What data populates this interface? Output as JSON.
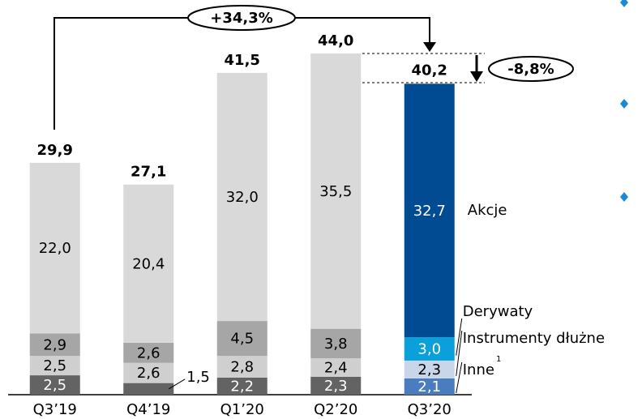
{
  "chart_data": {
    "type": "stacked_bar",
    "categories": [
      "Q3’19",
      "Q4’19",
      "Q1’20",
      "Q2’20",
      "Q3’20"
    ],
    "series": [
      {
        "name": "Inne",
        "superscript": "1",
        "values": [
          2.5,
          1.5,
          2.2,
          2.3,
          2.1
        ],
        "value_labels": [
          "2,5",
          "1,5",
          "2,2",
          "2,3",
          "2,1"
        ],
        "colors": [
          "#636363",
          "#636363",
          "#636363",
          "#636363",
          "#4a7cc0"
        ]
      },
      {
        "name": "Instrumenty dłużne",
        "values": [
          2.5,
          2.6,
          2.8,
          2.4,
          2.3
        ],
        "value_labels": [
          "2,5",
          "2,6",
          "2,8",
          "2,4",
          "2,3"
        ],
        "colors": [
          "#cfcfcf",
          "#cfcfcf",
          "#cfcfcf",
          "#cfcfcf",
          "#c9d6ea"
        ]
      },
      {
        "name": "Derywaty",
        "values": [
          2.9,
          2.6,
          4.5,
          3.8,
          3.0
        ],
        "value_labels": [
          "2,9",
          "2,6",
          "4,5",
          "3,8",
          "3,0"
        ],
        "colors": [
          "#a6a6a6",
          "#a6a6a6",
          "#a6a6a6",
          "#a6a6a6",
          "#0aa0dc"
        ]
      },
      {
        "name": "Akcje",
        "values": [
          22.0,
          20.4,
          32.0,
          35.5,
          32.7
        ],
        "value_labels": [
          "22,0",
          "20,4",
          "32,0",
          "35,5",
          "32,7"
        ],
        "colors": [
          "#d9d9d9",
          "#d9d9d9",
          "#d9d9d9",
          "#d9d9d9",
          "#004b91"
        ]
      }
    ],
    "totals": {
      "values": [
        29.9,
        27.1,
        41.5,
        44.0,
        40.2
      ],
      "value_labels": [
        "29,9",
        "27,1",
        "41,5",
        "44,0",
        "40,2"
      ]
    },
    "annotations": [
      {
        "text": "+34,3%"
      },
      {
        "text": "-8,8%"
      }
    ]
  }
}
